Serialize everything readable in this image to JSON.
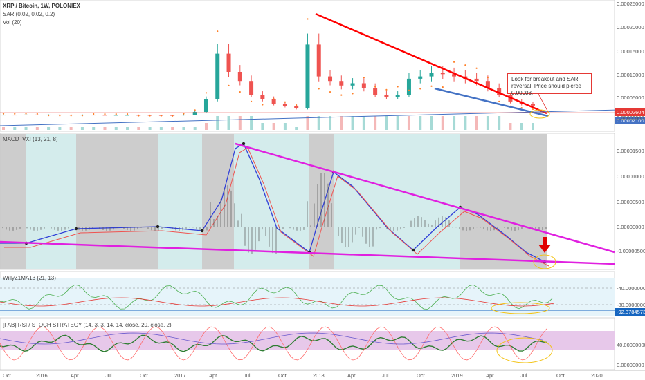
{
  "header": {
    "title": "XRP / Bitcoin, 1W, POLONIEX",
    "sar_label": "SAR (0.02, 0.02, 0.2)",
    "vol_label": "Vol (20)"
  },
  "panels": {
    "macd_label": "MACD_VXI (13, 21, 8)",
    "willy_label": "WillyZ1MA13 (21, 13)",
    "rsi_label": "[FAB] RSI / STOCH STRATEGY (14, 3, 3, 14, 14, close, 20, close, 2)"
  },
  "annotation": {
    "text": "Look for breakout and SAR reversal. Price should pierce 0.00003."
  },
  "price_tags": {
    "last": "0.00002604",
    "support": "0.00002100",
    "willy_value": "-92.37845730"
  },
  "colors": {
    "up": "#26a69a",
    "down": "#ef5350",
    "price_line": "#e53935",
    "trend_down": "#ff0000",
    "trend_up": "#4472c4",
    "macd_line": "#2f3ed8",
    "macd_signal": "#ef5350",
    "magenta": "#e020e0",
    "sar": "#ff7f27",
    "band_cyan": "#cfeaea",
    "band_gray": "#c8c8c8",
    "highlight": "#f3c316"
  },
  "chart_data": [
    {
      "type": "candlestick",
      "title": "XRP / Bitcoin, 1W, POLONIEX",
      "x": [
        "2015-10",
        "2015-11",
        "2015-12",
        "2016-01",
        "2016-02",
        "2016-03",
        "2016-04",
        "2016-05",
        "2016-06",
        "2016-07",
        "2016-08",
        "2016-09",
        "2016-10",
        "2016-11",
        "2016-12",
        "2017-01",
        "2017-02",
        "2017-03",
        "2017-04",
        "2017-05",
        "2017-06",
        "2017-07",
        "2017-08",
        "2017-09",
        "2017-10",
        "2017-11",
        "2017-12",
        "2018-01",
        "2018-02",
        "2018-03",
        "2018-04",
        "2018-05",
        "2018-06",
        "2018-07",
        "2018-08",
        "2018-09",
        "2018-10",
        "2018-11",
        "2018-12",
        "2019-01",
        "2019-02",
        "2019-03",
        "2019-04",
        "2019-05",
        "2019-06",
        "2019-07",
        "2019-08",
        "2019-09"
      ],
      "close": [
        6e-06,
        5.9e-06,
        6.2e-06,
        5.8e-06,
        6.1e-06,
        6e-06,
        5.9e-06,
        6e-06,
        5.6e-06,
        5.5e-06,
        5.5e-06,
        5.5e-06,
        5.4e-06,
        5.3e-06,
        5.1e-06,
        4.7e-06,
        6e-06,
        1.2e-05,
        4e-05,
        0.00014,
        0.0001,
        8e-05,
        5e-05,
        4e-05,
        3e-05,
        2.5e-05,
        2e-05,
        0.00016,
        9e-05,
        8e-05,
        7e-05,
        7.5e-05,
        6.5e-05,
        5e-05,
        4.5e-05,
        5e-05,
        8.5e-05,
        9e-05,
        9.8e-05,
        9.5e-05,
        9e-05,
        8.5e-05,
        8e-05,
        6.5e-05,
        5e-05,
        3.5e-05,
        3e-05,
        2.6e-05
      ],
      "last_price": "0.00002604",
      "y_ticks": [
        "0.00000000",
        "0.00005000",
        "0.00010000",
        "0.00015000",
        "0.00020000",
        "0.00025000"
      ],
      "ylim": [
        0,
        0.00025
      ]
    },
    {
      "type": "line",
      "title": "MACD_VXI (13, 21, 8)",
      "y_ticks": [
        "-0.00000500",
        "0.00000000",
        "0.00000500",
        "0.00001000",
        "0.00001500"
      ],
      "ylim": [
        -8.5e-06,
        1.75e-05
      ]
    },
    {
      "type": "line",
      "title": "WillyZ1MA13 (21, 13)",
      "y_ticks": [
        "-40.00000000",
        "-80.00000000"
      ],
      "last_value": "-92.37845730",
      "ylim": [
        -100,
        -20
      ]
    },
    {
      "type": "line",
      "title": "[FAB] RSI / STOCH STRATEGY (14, 3, 3, 14, 14, close, 20, close, 2)",
      "y_ticks": [
        "0.00000000",
        "40.00000000"
      ],
      "ylim": [
        -5,
        110
      ]
    }
  ],
  "x_axis": {
    "labels": [
      "Oct",
      "2016",
      "Apr",
      "Jul",
      "Oct",
      "2017",
      "Apr",
      "Jul",
      "Oct",
      "2018",
      "Apr",
      "Jul",
      "Oct",
      "2019",
      "Apr",
      "Jul",
      "Oct",
      "2020"
    ]
  }
}
